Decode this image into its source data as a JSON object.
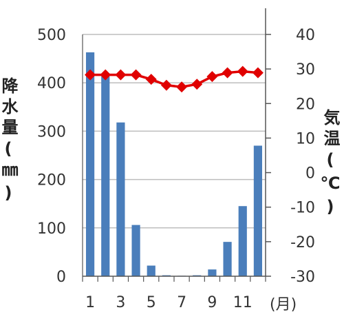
{
  "chart_data": {
    "type": "bar+line",
    "categories": [
      "1",
      "2",
      "3",
      "4",
      "5",
      "6",
      "7",
      "8",
      "9",
      "10",
      "11",
      "12"
    ],
    "x_tick_labels": [
      "1",
      "3",
      "5",
      "7",
      "9",
      "11"
    ],
    "x_unit": "(月)",
    "series": [
      {
        "type": "bar",
        "axis": "left",
        "color": "#4a7ebb",
        "values": [
          463,
          413,
          318,
          106,
          22,
          2,
          1,
          2,
          14,
          71,
          145,
          270
        ]
      },
      {
        "type": "line",
        "axis": "right",
        "color": "#e00000",
        "marker": "diamond",
        "values": [
          28.3,
          28.3,
          28.3,
          28.3,
          27.0,
          25.3,
          24.8,
          25.6,
          27.8,
          28.9,
          29.3,
          28.9
        ]
      }
    ],
    "ylabel": "降水量(㎜)",
    "y2label": "気温(℃)",
    "ylim": [
      0,
      500
    ],
    "y2lim": [
      -30,
      40
    ],
    "yticks": [
      "0",
      "100",
      "200",
      "300",
      "400",
      "500"
    ],
    "y2ticks": [
      "-30",
      "-20",
      "-10",
      "0",
      "10",
      "20",
      "30",
      "40"
    ],
    "grid": true,
    "legend": "none"
  }
}
